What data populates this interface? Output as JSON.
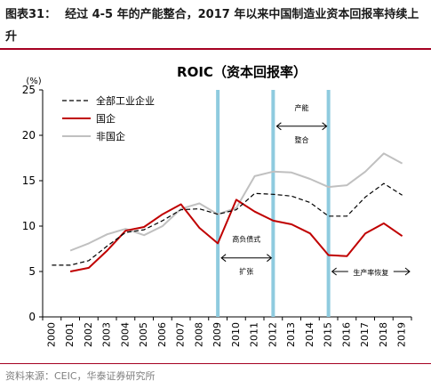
{
  "figure": {
    "label": "图表31：",
    "title": "经过 4-5 年的产能整合，2017 年以来中国制造业资本回报率持续上升",
    "source": "资料来源：CEIC，华泰证券研究所"
  },
  "chart_data": {
    "type": "line",
    "title": "ROIC（资本回报率）",
    "ylabel": "(%)",
    "xlabel": "",
    "ylim": [
      0,
      25
    ],
    "yticks": [
      "0",
      "5",
      "10",
      "15",
      "20",
      "25"
    ],
    "x": [
      "2000",
      "2001",
      "2002",
      "2003",
      "2004",
      "2005",
      "2006",
      "2007",
      "2008",
      "2009",
      "2010",
      "2011",
      "2012",
      "2013",
      "2014",
      "2015",
      "2016",
      "2017",
      "2018",
      "2019"
    ],
    "legend_position": "top-left",
    "grid": false,
    "series": [
      {
        "name": "全部工业企业",
        "color": "#000000",
        "style": "dashed",
        "values": [
          5.7,
          5.7,
          6.2,
          7.8,
          9.3,
          9.6,
          10.6,
          11.8,
          11.9,
          11.3,
          11.8,
          13.6,
          13.5,
          13.3,
          12.6,
          11.1,
          11.1,
          13.2,
          14.7,
          13.4
        ]
      },
      {
        "name": "国企",
        "color": "#c00000",
        "style": "solid",
        "values": [
          null,
          5.0,
          5.4,
          7.3,
          9.5,
          9.9,
          11.3,
          12.4,
          9.8,
          8.1,
          12.9,
          11.6,
          10.6,
          10.2,
          9.2,
          6.8,
          6.7,
          9.2,
          10.3,
          8.9
        ]
      },
      {
        "name": "非国企",
        "color": "#c0c0c0",
        "style": "solid",
        "values": [
          null,
          7.3,
          8.1,
          9.1,
          9.7,
          9.0,
          10.0,
          11.9,
          12.5,
          11.3,
          12.0,
          15.5,
          16.0,
          15.9,
          15.2,
          14.3,
          14.5,
          16.0,
          18.0,
          16.9
        ]
      }
    ],
    "markers": [
      {
        "x": 2009,
        "color": "#8fcbdf"
      },
      {
        "x": 2012,
        "color": "#8fcbdf"
      },
      {
        "x": 2015,
        "color": "#8fcbdf"
      }
    ],
    "annotations": [
      {
        "id": "high-debt",
        "lines": [
          "高负债式",
          "扩张"
        ],
        "from": 2009,
        "to": 2012,
        "y": 6.5
      },
      {
        "id": "capacity",
        "lines": [
          "产能",
          "整合"
        ],
        "from": 2012,
        "to": 2015,
        "y": 21.0
      },
      {
        "id": "recovery",
        "lines": [
          "生产率恢复"
        ],
        "from": 2015,
        "to": 2019.5,
        "y": 5.0
      }
    ]
  }
}
